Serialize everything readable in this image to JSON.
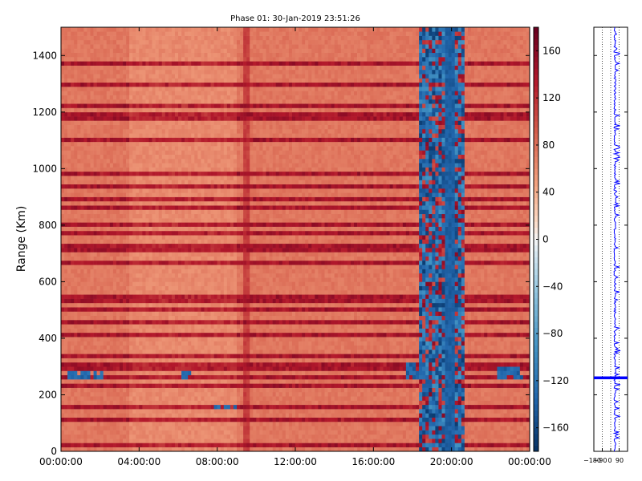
{
  "chart_data": [
    {
      "type": "heatmap",
      "title": "Phase 01: 30-Jan-2019 23:51:26",
      "xlabel": "",
      "ylabel": "Range (Km)",
      "xlim_hours": [
        0,
        24
      ],
      "ylim": [
        0,
        1500
      ],
      "x_ticks": [
        {
          "hour": 0,
          "label": "00:00:00"
        },
        {
          "hour": 4,
          "label": "04:00:00"
        },
        {
          "hour": 8,
          "label": "08:00:00"
        },
        {
          "hour": 12,
          "label": "12:00:00"
        },
        {
          "hour": 16,
          "label": "16:00:00"
        },
        {
          "hour": 20,
          "label": "20:00:00"
        },
        {
          "hour": 24,
          "label": "00:00:00"
        }
      ],
      "y_ticks": [
        {
          "value": 0,
          "label": "0"
        },
        {
          "value": 200,
          "label": "200"
        },
        {
          "value": 400,
          "label": "400"
        },
        {
          "value": 600,
          "label": "600"
        },
        {
          "value": 800,
          "label": "800"
        },
        {
          "value": 1000,
          "label": "1000"
        },
        {
          "value": 1200,
          "label": "1200"
        },
        {
          "value": 1400,
          "label": "1400"
        }
      ],
      "colorbar": {
        "colormap": "RdBu_r",
        "range": [
          -180,
          180
        ],
        "ticks": [
          {
            "value": 160,
            "label": "160"
          },
          {
            "value": 120,
            "label": "120"
          },
          {
            "value": 80,
            "label": "80"
          },
          {
            "value": 40,
            "label": "40"
          },
          {
            "value": 0,
            "label": "0"
          },
          {
            "value": -40,
            "label": "−40"
          },
          {
            "value": -80,
            "label": "−80"
          },
          {
            "value": -120,
            "label": "−120"
          },
          {
            "value": -160,
            "label": "−160"
          }
        ]
      },
      "background_level": 75,
      "dark_vertical_bands_hours": [
        {
          "start": 9.3,
          "end": 9.7,
          "value": 110
        }
      ],
      "noisy_blue_bands_hours": [
        {
          "start": 18.4,
          "end": 20.6,
          "value": -140
        }
      ],
      "strong_range_rows_km": [
        1370,
        1300,
        1225,
        1185,
        1100,
        985,
        940,
        895,
        860,
        800,
        770,
        720,
        670,
        540,
        505,
        455,
        410,
        335,
        300,
        265,
        235,
        160,
        110,
        25
      ],
      "negative_patches": [
        {
          "hour_start": 0.4,
          "hour_end": 2.2,
          "range_min": 250,
          "range_max": 290
        },
        {
          "hour_start": 6.0,
          "hour_end": 6.6,
          "range_min": 260,
          "range_max": 280
        },
        {
          "hour_start": 7.7,
          "hour_end": 9.0,
          "range_min": 155,
          "range_max": 170
        },
        {
          "hour_start": 17.6,
          "hour_end": 18.6,
          "range_min": 260,
          "range_max": 310
        },
        {
          "hour_start": 22.4,
          "hour_end": 23.9,
          "range_min": 255,
          "range_max": 300
        }
      ]
    },
    {
      "type": "line",
      "title": "",
      "x_tick_labels": [
        "−180",
        "−90",
        "0",
        "90"
      ],
      "xlim": [
        -180,
        180
      ],
      "ylim": [
        0,
        1500
      ],
      "series": [
        {
          "color": "#0000ff",
          "baseline": 45,
          "note_values": "spiky profile near 45-90 across range"
        }
      ],
      "highlight_band": {
        "range_min": 255,
        "range_max": 265,
        "color": "#0000ff"
      }
    }
  ]
}
